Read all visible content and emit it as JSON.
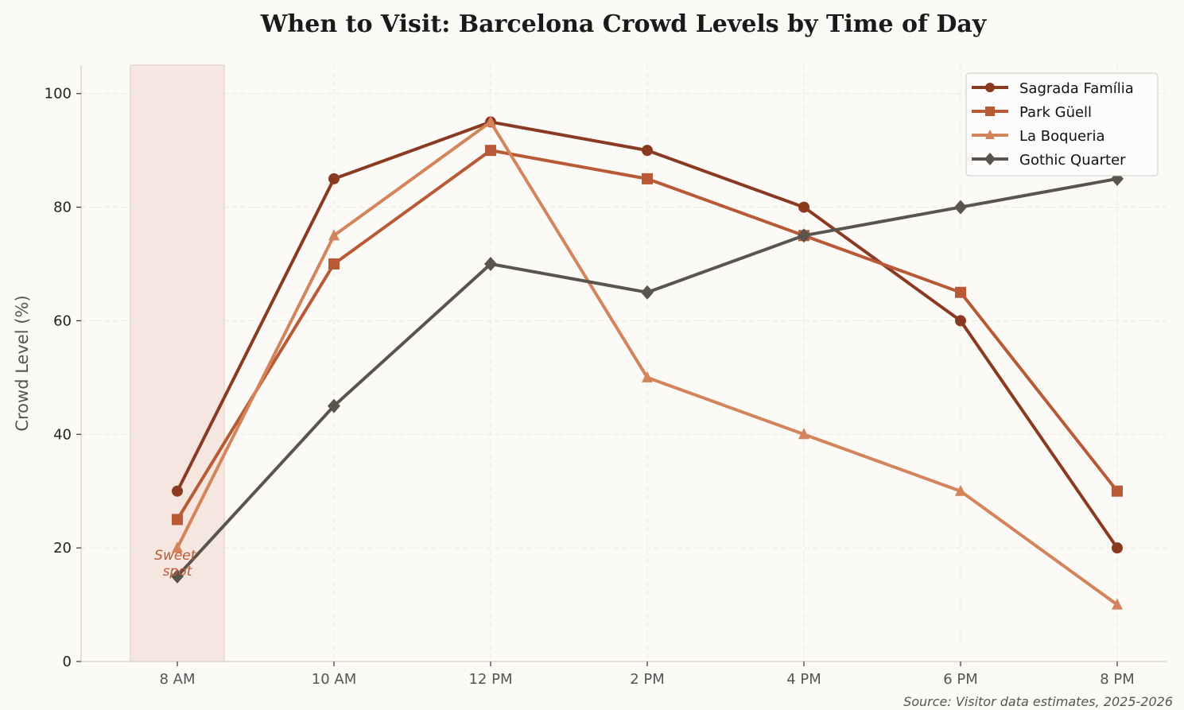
{
  "chart_data": {
    "type": "line",
    "title": "When to Visit: Barcelona Crowd Levels by Time of Day",
    "xlabel": "",
    "ylabel": "Crowd Level (%)",
    "categories": [
      "8 AM",
      "10 AM",
      "12 PM",
      "2 PM",
      "4 PM",
      "6 PM",
      "8 PM"
    ],
    "ylim": [
      0,
      105
    ],
    "yticks": [
      0,
      20,
      40,
      60,
      80,
      100
    ],
    "grid": true,
    "legend_position": "top-right",
    "series": [
      {
        "name": "Sagrada Família",
        "color": "#8b3a22",
        "marker": "circle",
        "values": [
          30,
          85,
          95,
          90,
          80,
          60,
          20
        ]
      },
      {
        "name": "Park Güell",
        "color": "#b85a35",
        "marker": "square",
        "values": [
          25,
          70,
          90,
          85,
          75,
          65,
          30
        ]
      },
      {
        "name": "La Boqueria",
        "color": "#d4845a",
        "marker": "triangle",
        "values": [
          20,
          75,
          95,
          50,
          40,
          30,
          10
        ]
      },
      {
        "name": "Gothic Quarter",
        "color": "#5a554c",
        "marker": "diamond",
        "values": [
          15,
          45,
          70,
          65,
          75,
          80,
          85
        ]
      }
    ],
    "highlight": {
      "category": "8 AM",
      "label": "Sweet\nspot",
      "label_lines": [
        "Sweet",
        "spot"
      ],
      "color": "#f5e6df"
    },
    "source_note": "Source: Visitor data estimates, 2025-2026"
  }
}
